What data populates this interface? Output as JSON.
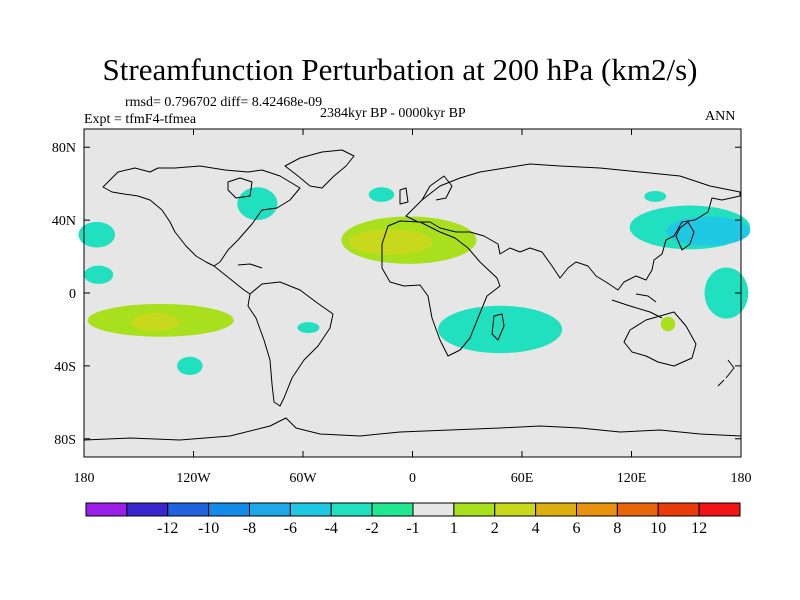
{
  "title": "Streamfunction Perturbation at 200 hPa (km2/s)",
  "stats_line": "rmsd= 0.796702 diff= 8.42468e-09",
  "experiment_line": "Expt = tfmF4-tfmea",
  "period_line": "2384kyr BP - 0000kyr BP",
  "season_label": "ANN",
  "map": {
    "projection": "cylindrical equidistant",
    "lon_range": [
      -180,
      180
    ],
    "lat_range": [
      -90,
      90
    ],
    "lat_ticks": [
      {
        "value": 80,
        "label": "80N"
      },
      {
        "value": 40,
        "label": "40N"
      },
      {
        "value": 0,
        "label": "0"
      },
      {
        "value": -40,
        "label": "40S"
      },
      {
        "value": -80,
        "label": "80S"
      }
    ],
    "lon_ticks": [
      {
        "value": -180,
        "label": "180"
      },
      {
        "value": -120,
        "label": "120W"
      },
      {
        "value": -60,
        "label": "60W"
      },
      {
        "value": 0,
        "label": "0"
      },
      {
        "value": 60,
        "label": "60E"
      },
      {
        "value": 120,
        "label": "120E"
      },
      {
        "value": 180,
        "label": "180"
      }
    ],
    "background_color": "#e6e6e6",
    "anomaly_regions": [
      {
        "name": "north-pacific-east",
        "center": [
          -173,
          32
        ],
        "half_width": [
          10,
          7
        ],
        "level": -2
      },
      {
        "name": "central-pacific-west",
        "center": [
          -172,
          10
        ],
        "half_width": [
          8,
          5
        ],
        "level": -2
      },
      {
        "name": "great-lakes",
        "center": [
          -85,
          49
        ],
        "half_width": [
          11,
          9
        ],
        "level": -2
      },
      {
        "name": "north-atlantic-small",
        "center": [
          -17,
          54
        ],
        "half_width": [
          7,
          4
        ],
        "level": -2
      },
      {
        "name": "sahara-outer",
        "center": [
          -2,
          29
        ],
        "half_width": [
          37,
          13
        ],
        "level": 1
      },
      {
        "name": "sahara-inner",
        "center": [
          -12,
          28
        ],
        "half_width": [
          23,
          7
        ],
        "level": 2
      },
      {
        "name": "south-pacific-outer",
        "center": [
          -138,
          -15
        ],
        "half_width": [
          40,
          9
        ],
        "level": 1
      },
      {
        "name": "south-pacific-inner",
        "center": [
          -141,
          -16
        ],
        "half_width": [
          13,
          5
        ],
        "level": 2
      },
      {
        "name": "south-america-small",
        "center": [
          -57,
          -19
        ],
        "half_width": [
          6,
          3
        ],
        "level": -2
      },
      {
        "name": "south-pacific-small",
        "center": [
          -122,
          -40
        ],
        "half_width": [
          7,
          5
        ],
        "level": -2
      },
      {
        "name": "indian-ocean",
        "center": [
          48,
          -20
        ],
        "half_width": [
          34,
          13
        ],
        "level": -2
      },
      {
        "name": "northwest-pacific-outer",
        "center": [
          152,
          36
        ],
        "half_width": [
          33,
          12
        ],
        "level": -2
      },
      {
        "name": "northwest-pacific-inner",
        "center": [
          162,
          34
        ],
        "half_width": [
          23,
          8
        ],
        "level": -4
      },
      {
        "name": "japan-small",
        "center": [
          133,
          53
        ],
        "half_width": [
          6,
          3
        ],
        "level": -2
      },
      {
        "name": "east-pacific",
        "center": [
          172,
          0
        ],
        "half_width": [
          12,
          14
        ],
        "level": -2
      },
      {
        "name": "australia",
        "center": [
          140,
          -17
        ],
        "half_width": [
          4,
          4
        ],
        "level": 1
      }
    ]
  },
  "colorbar": {
    "colors": [
      "#9b1fe8",
      "#3a26cf",
      "#1f63e0",
      "#128ce8",
      "#1fa8e8",
      "#20c9e3",
      "#20e0c0",
      "#1fe890",
      "#e6e6e6",
      "#a8e01e",
      "#c8d81c",
      "#dcb012",
      "#e89210",
      "#e8660a",
      "#e83c0a",
      "#f01414"
    ],
    "labels": [
      "-12",
      "-10",
      "-8",
      "-6",
      "-4",
      "-2",
      "-1",
      "1",
      "2",
      "4",
      "6",
      "8",
      "10",
      "12"
    ]
  }
}
